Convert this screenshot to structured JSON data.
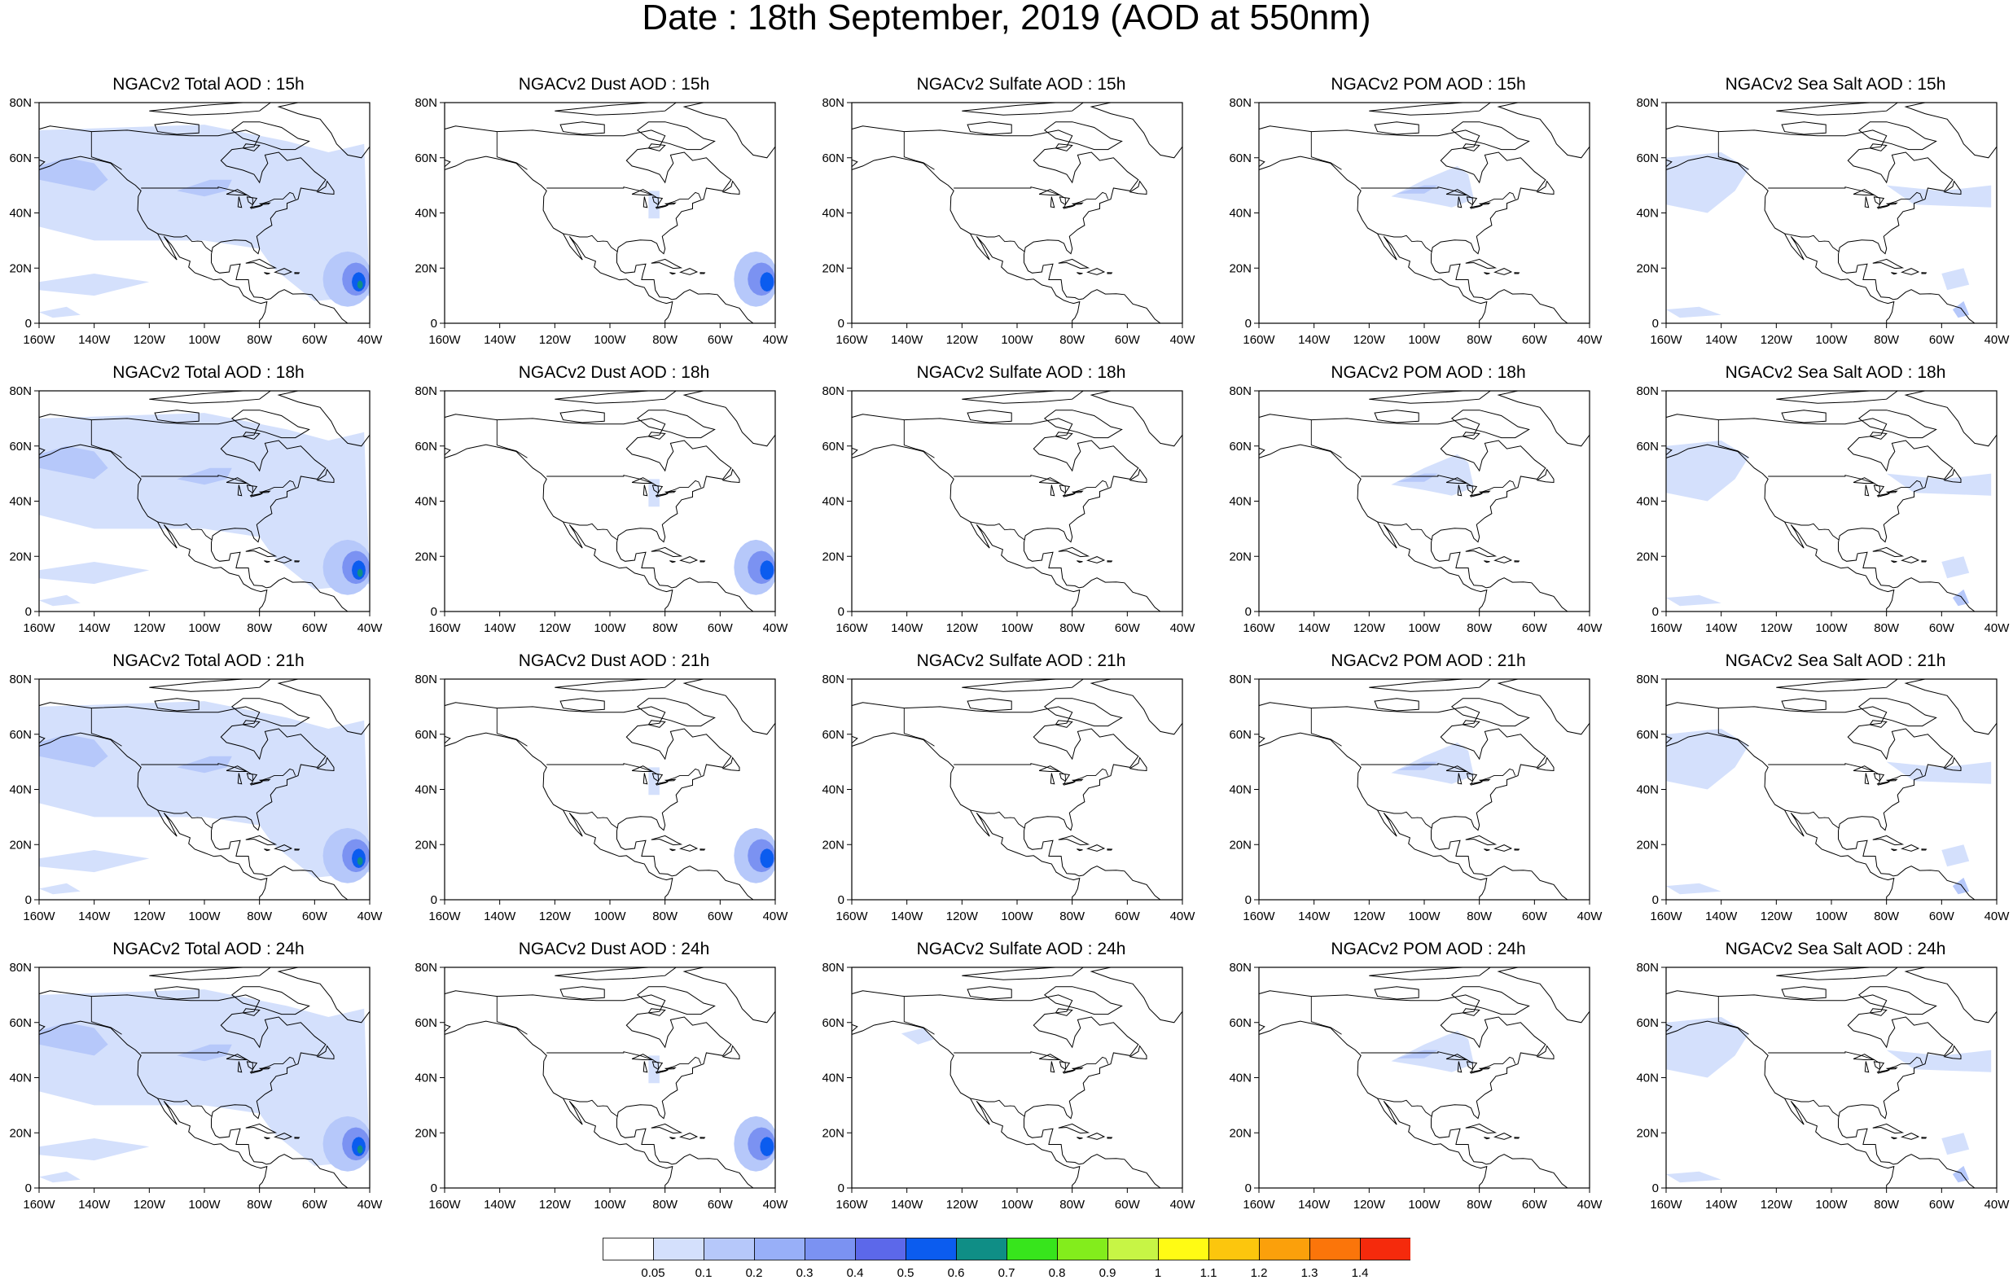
{
  "title": "Date : 18th September, 2019 (AOD at 550nm)",
  "panels": [
    [
      "NGACv2 Total AOD : 15h",
      "NGACv2 Dust AOD : 15h",
      "NGACv2 Sulfate AOD : 15h",
      "NGACv2 POM AOD : 15h",
      "NGACv2 Sea Salt AOD : 15h"
    ],
    [
      "NGACv2 Total AOD : 18h",
      "NGACv2 Dust AOD : 18h",
      "NGACv2 Sulfate AOD : 18h",
      "NGACv2 POM AOD : 18h",
      "NGACv2 Sea Salt AOD : 18h"
    ],
    [
      "NGACv2 Total AOD : 21h",
      "NGACv2 Dust AOD : 21h",
      "NGACv2 Sulfate AOD : 21h",
      "NGACv2 POM AOD : 21h",
      "NGACv2 Sea Salt AOD : 21h"
    ],
    [
      "NGACv2 Total AOD : 24h",
      "NGACv2 Dust AOD : 24h",
      "NGACv2 Sulfate AOD : 24h",
      "NGACv2 POM AOD : 24h",
      "NGACv2 Sea Salt  AOD : 24h"
    ]
  ],
  "species": [
    "total",
    "dust",
    "sulfate",
    "pom",
    "seasalt"
  ],
  "axes": {
    "lat_ticks": [
      "0",
      "20N",
      "40N",
      "60N",
      "80N"
    ],
    "lon_ticks": [
      "160W",
      "140W",
      "120W",
      "100W",
      "80W",
      "60W",
      "40W"
    ],
    "lat_range": [
      0,
      80
    ],
    "lon_range": [
      -160,
      -40
    ]
  },
  "colorbar": {
    "labels": [
      "0.05",
      "0.1",
      "0.2",
      "0.3",
      "0.4",
      "0.5",
      "0.6",
      "0.7",
      "0.8",
      "0.9",
      "1",
      "1.1",
      "1.2",
      "1.3",
      "1.4"
    ],
    "colors": [
      "#ffffff",
      "#d4e0fc",
      "#b6c8fa",
      "#98aff8",
      "#7b92f2",
      "#5c68ea",
      "#0b5cef",
      "#0f8e86",
      "#37e51c",
      "#83ed1c",
      "#c7f545",
      "#fffb14",
      "#fcc60d",
      "#fba00b",
      "#fb750a",
      "#f52a0c"
    ]
  }
}
